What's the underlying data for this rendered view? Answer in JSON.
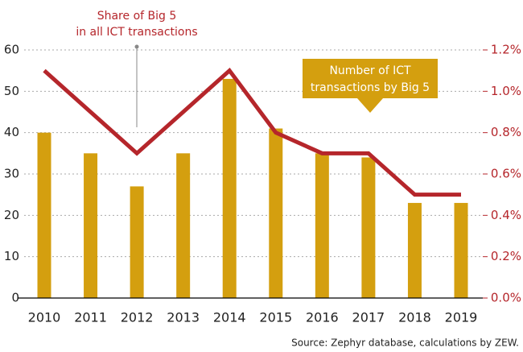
{
  "chart_data": {
    "type": "bar_line",
    "categories": [
      "2010",
      "2011",
      "2012",
      "2013",
      "2014",
      "2015",
      "2016",
      "2017",
      "2018",
      "2019"
    ],
    "series": [
      {
        "type": "bar",
        "color": "#d49f0f",
        "values": [
          40,
          35,
          27,
          35,
          53,
          41,
          35,
          34,
          23,
          23
        ]
      },
      {
        "type": "line",
        "axis": "y2",
        "color": "#b5262b",
        "values": [
          1.1,
          0.9,
          0.7,
          0.9,
          1.1,
          0.8,
          0.7,
          0.7,
          0.5,
          0.5
        ]
      }
    ],
    "ylim": [
      0,
      60
    ],
    "yticks": [
      0,
      10,
      20,
      30,
      40,
      50,
      60
    ],
    "y2lim": [
      0,
      1.2
    ],
    "y2ticks": [
      {
        "value": 0,
        "label": "0.0%"
      },
      {
        "value": 0.2,
        "label": "0.2%"
      },
      {
        "value": 0.4,
        "label": "0.4%"
      },
      {
        "value": 0.6,
        "label": "0.6%"
      },
      {
        "value": 0.8,
        "label": "0.8%"
      },
      {
        "value": 1.0,
        "label": "1.0%"
      },
      {
        "value": 1.2,
        "label": "1.2%"
      }
    ],
    "grid": true,
    "annotations": [
      {
        "text": [
          "Share of Big 5",
          "in all ICT transactions"
        ]
      },
      {
        "text": [
          "Number of ICT",
          "transactions by Big 5"
        ]
      }
    ],
    "source": "Source: Zephyr database, calculations by ZEW."
  }
}
